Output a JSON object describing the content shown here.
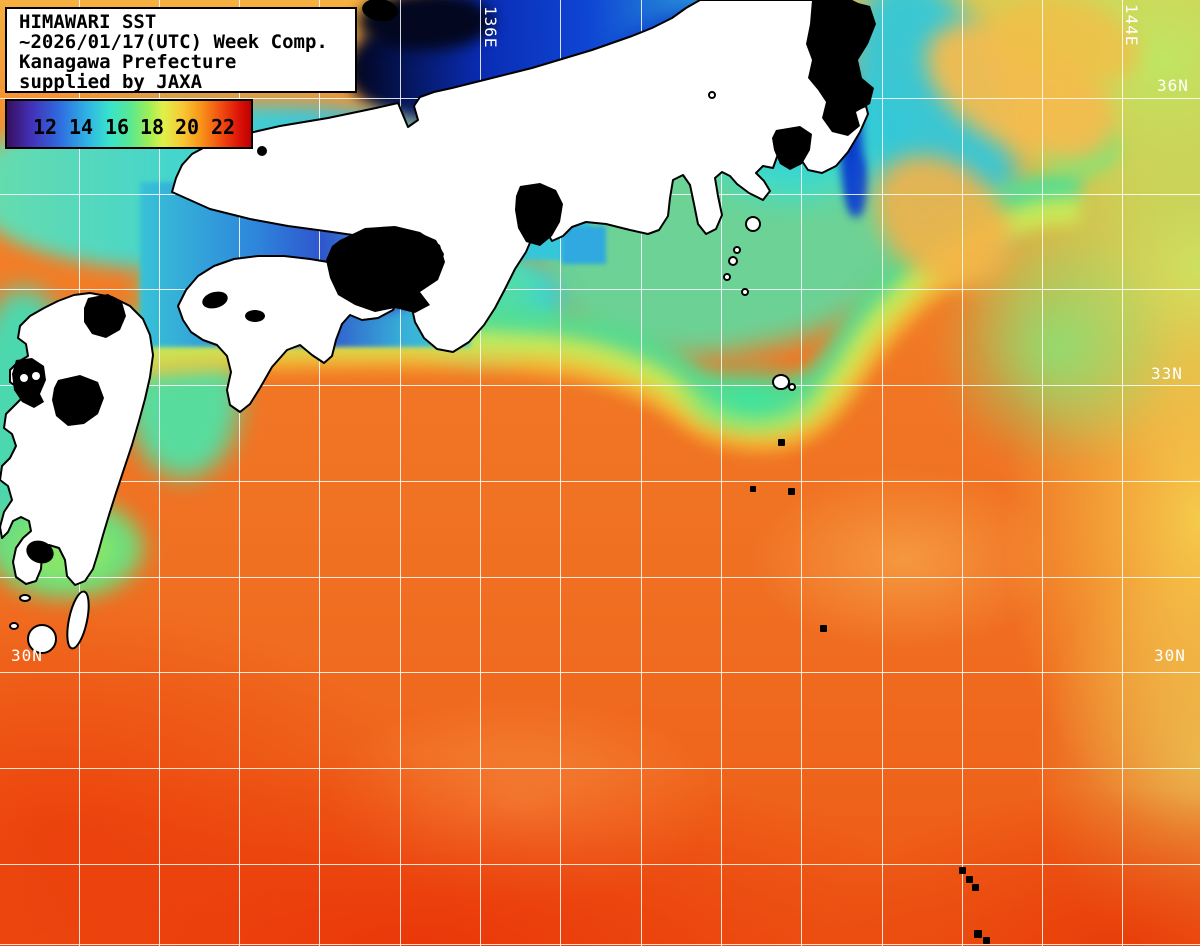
{
  "title_box": {
    "lines": [
      "HIMAWARI SST",
      "~2026/01/17(UTC) Week Comp.",
      "Kanagawa Prefecture",
      "supplied by JAXA"
    ]
  },
  "colorbar": {
    "tick_labels": [
      "12",
      "14",
      "16",
      "18",
      "20",
      "22"
    ],
    "gradient_stops": [
      "#381060 0%",
      "#4330b8 10%",
      "#2e6ee0 22%",
      "#30b4e4 33%",
      "#38e2cc 42%",
      "#55e896 50%",
      "#9cee58 58%",
      "#dff04a 64%",
      "#f8c834 72%",
      "#f89018 80%",
      "#f04a10 88%",
      "#dc1408 95%",
      "#c00000 100%"
    ]
  },
  "grid_labels": {
    "lon_136": "136E",
    "lon_144": "144E",
    "lat_36_right": "36N",
    "lat_33_right": "33N",
    "lat_30_right": "30N",
    "lat_30_left": "30N"
  },
  "map_meta": {
    "sea_status_colors": {
      "coldest_deep_blue": "#0a2cb4",
      "coastal_cyan": "#38d6d1",
      "front_green": "#54dd92",
      "front_yellow": "#cdea55",
      "kuroshio_orange": "#f07022",
      "warmest_red": "#e83c08",
      "land": "#ffffff",
      "cloud_mask": "#000000",
      "grid": "#ffffff"
    }
  }
}
